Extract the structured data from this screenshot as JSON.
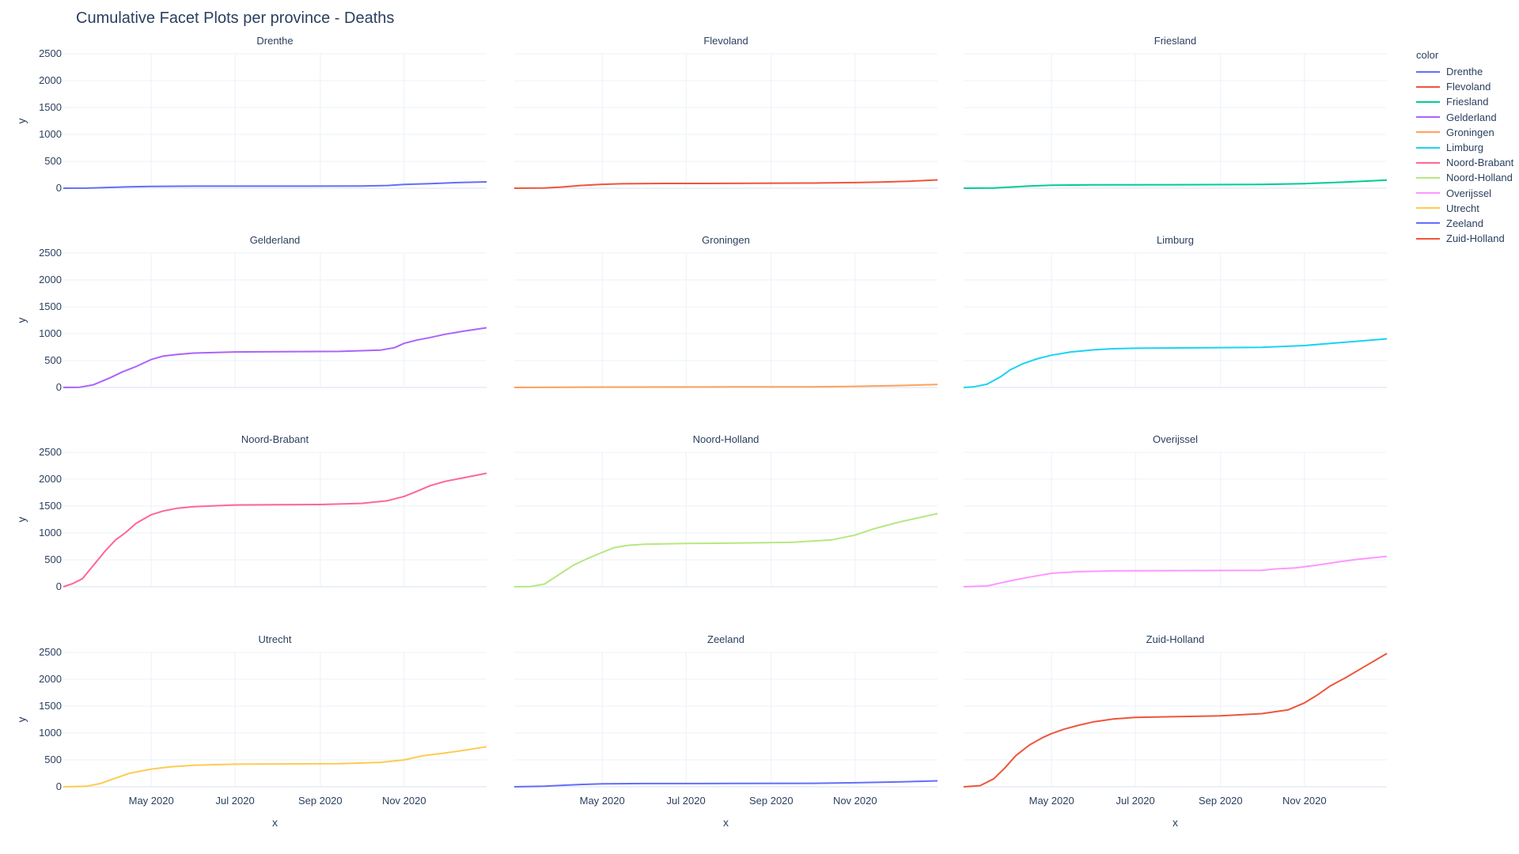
{
  "chart_data": {
    "type": "line",
    "title": "Cumulative Facet Plots per province - Deaths",
    "xlabel": "x",
    "ylabel": "y",
    "ylim": [
      0,
      2500
    ],
    "yticks": [
      0,
      500,
      1000,
      1500,
      2000,
      2500
    ],
    "xlim": [
      "2020-02-27",
      "2020-12-31"
    ],
    "xticks": [
      {
        "date": "2020-05-01",
        "label": "May 2020"
      },
      {
        "date": "2020-07-01",
        "label": "Jul 2020"
      },
      {
        "date": "2020-09-01",
        "label": "Sep 2020"
      },
      {
        "date": "2020-11-01",
        "label": "Nov 2020"
      }
    ],
    "legend_title": "color",
    "legend_position": "top-right",
    "grid": true,
    "series": [
      {
        "name": "Drenthe",
        "color": "#636efa",
        "points": [
          [
            "2020-02-27",
            0
          ],
          [
            "2020-03-15",
            2
          ],
          [
            "2020-04-01",
            15
          ],
          [
            "2020-04-15",
            25
          ],
          [
            "2020-05-01",
            32
          ],
          [
            "2020-06-01",
            38
          ],
          [
            "2020-08-01",
            38
          ],
          [
            "2020-10-01",
            40
          ],
          [
            "2020-10-20",
            50
          ],
          [
            "2020-11-01",
            70
          ],
          [
            "2020-11-20",
            85
          ],
          [
            "2020-12-10",
            105
          ],
          [
            "2020-12-31",
            118
          ]
        ]
      },
      {
        "name": "Flevoland",
        "color": "#EF553B",
        "points": [
          [
            "2020-02-27",
            0
          ],
          [
            "2020-03-20",
            5
          ],
          [
            "2020-04-01",
            20
          ],
          [
            "2020-04-15",
            50
          ],
          [
            "2020-05-01",
            72
          ],
          [
            "2020-05-15",
            82
          ],
          [
            "2020-06-15",
            88
          ],
          [
            "2020-08-01",
            90
          ],
          [
            "2020-10-01",
            95
          ],
          [
            "2020-11-01",
            105
          ],
          [
            "2020-11-20",
            115
          ],
          [
            "2020-12-10",
            130
          ],
          [
            "2020-12-31",
            155
          ]
        ]
      },
      {
        "name": "Friesland",
        "color": "#00cc96",
        "points": [
          [
            "2020-02-27",
            0
          ],
          [
            "2020-03-20",
            5
          ],
          [
            "2020-04-01",
            20
          ],
          [
            "2020-04-15",
            40
          ],
          [
            "2020-05-01",
            55
          ],
          [
            "2020-06-01",
            62
          ],
          [
            "2020-08-01",
            65
          ],
          [
            "2020-10-01",
            70
          ],
          [
            "2020-11-01",
            85
          ],
          [
            "2020-12-01",
            115
          ],
          [
            "2020-12-31",
            150
          ]
        ]
      },
      {
        "name": "Gelderland",
        "color": "#ab63fa",
        "points": [
          [
            "2020-02-27",
            0
          ],
          [
            "2020-03-10",
            5
          ],
          [
            "2020-03-20",
            50
          ],
          [
            "2020-04-01",
            180
          ],
          [
            "2020-04-10",
            290
          ],
          [
            "2020-04-20",
            390
          ],
          [
            "2020-05-01",
            520
          ],
          [
            "2020-05-10",
            585
          ],
          [
            "2020-05-20",
            615
          ],
          [
            "2020-06-01",
            640
          ],
          [
            "2020-07-01",
            660
          ],
          [
            "2020-08-01",
            665
          ],
          [
            "2020-09-15",
            670
          ],
          [
            "2020-10-15",
            695
          ],
          [
            "2020-10-25",
            740
          ],
          [
            "2020-11-01",
            820
          ],
          [
            "2020-11-10",
            880
          ],
          [
            "2020-11-20",
            930
          ],
          [
            "2020-12-01",
            990
          ],
          [
            "2020-12-15",
            1050
          ],
          [
            "2020-12-31",
            1110
          ]
        ]
      },
      {
        "name": "Groningen",
        "color": "#FFA15A",
        "points": [
          [
            "2020-02-27",
            0
          ],
          [
            "2020-04-01",
            3
          ],
          [
            "2020-05-01",
            8
          ],
          [
            "2020-08-01",
            10
          ],
          [
            "2020-10-01",
            12
          ],
          [
            "2020-11-01",
            20
          ],
          [
            "2020-12-01",
            35
          ],
          [
            "2020-12-31",
            55
          ]
        ]
      },
      {
        "name": "Limburg",
        "color": "#19d3f3",
        "points": [
          [
            "2020-02-27",
            0
          ],
          [
            "2020-03-05",
            10
          ],
          [
            "2020-03-15",
            60
          ],
          [
            "2020-03-25",
            200
          ],
          [
            "2020-04-01",
            330
          ],
          [
            "2020-04-10",
            440
          ],
          [
            "2020-04-20",
            530
          ],
          [
            "2020-05-01",
            600
          ],
          [
            "2020-05-15",
            660
          ],
          [
            "2020-06-01",
            700
          ],
          [
            "2020-06-15",
            720
          ],
          [
            "2020-07-01",
            730
          ],
          [
            "2020-08-01",
            735
          ],
          [
            "2020-10-01",
            745
          ],
          [
            "2020-11-01",
            780
          ],
          [
            "2020-11-20",
            820
          ],
          [
            "2020-12-10",
            860
          ],
          [
            "2020-12-31",
            905
          ]
        ]
      },
      {
        "name": "Noord-Brabant",
        "color": "#FF6692",
        "points": [
          [
            "2020-02-27",
            0
          ],
          [
            "2020-03-05",
            60
          ],
          [
            "2020-03-12",
            150
          ],
          [
            "2020-03-20",
            400
          ],
          [
            "2020-03-28",
            650
          ],
          [
            "2020-04-05",
            870
          ],
          [
            "2020-04-12",
            1000
          ],
          [
            "2020-04-20",
            1180
          ],
          [
            "2020-05-01",
            1340
          ],
          [
            "2020-05-10",
            1410
          ],
          [
            "2020-05-20",
            1460
          ],
          [
            "2020-06-01",
            1490
          ],
          [
            "2020-07-01",
            1520
          ],
          [
            "2020-08-01",
            1525
          ],
          [
            "2020-09-01",
            1530
          ],
          [
            "2020-10-01",
            1550
          ],
          [
            "2020-10-20",
            1600
          ],
          [
            "2020-11-01",
            1680
          ],
          [
            "2020-11-10",
            1770
          ],
          [
            "2020-11-20",
            1880
          ],
          [
            "2020-12-01",
            1960
          ],
          [
            "2020-12-15",
            2030
          ],
          [
            "2020-12-31",
            2110
          ]
        ]
      },
      {
        "name": "Noord-Holland",
        "color": "#B6E880",
        "points": [
          [
            "2020-02-27",
            0
          ],
          [
            "2020-03-10",
            5
          ],
          [
            "2020-03-20",
            50
          ],
          [
            "2020-04-01",
            250
          ],
          [
            "2020-04-10",
            400
          ],
          [
            "2020-04-20",
            520
          ],
          [
            "2020-05-01",
            640
          ],
          [
            "2020-05-10",
            730
          ],
          [
            "2020-05-20",
            770
          ],
          [
            "2020-06-01",
            790
          ],
          [
            "2020-07-01",
            805
          ],
          [
            "2020-08-01",
            810
          ],
          [
            "2020-09-15",
            825
          ],
          [
            "2020-10-15",
            870
          ],
          [
            "2020-11-01",
            960
          ],
          [
            "2020-11-15",
            1080
          ],
          [
            "2020-12-01",
            1190
          ],
          [
            "2020-12-15",
            1270
          ],
          [
            "2020-12-31",
            1360
          ]
        ]
      },
      {
        "name": "Overijssel",
        "color": "#FF97FF",
        "points": [
          [
            "2020-02-27",
            0
          ],
          [
            "2020-03-15",
            15
          ],
          [
            "2020-04-01",
            110
          ],
          [
            "2020-04-15",
            180
          ],
          [
            "2020-05-01",
            250
          ],
          [
            "2020-05-20",
            280
          ],
          [
            "2020-06-15",
            295
          ],
          [
            "2020-08-01",
            300
          ],
          [
            "2020-10-01",
            305
          ],
          [
            "2020-10-10",
            330
          ],
          [
            "2020-10-25",
            350
          ],
          [
            "2020-11-10",
            400
          ],
          [
            "2020-11-25",
            460
          ],
          [
            "2020-12-10",
            510
          ],
          [
            "2020-12-31",
            565
          ]
        ]
      },
      {
        "name": "Utrecht",
        "color": "#FECB52",
        "points": [
          [
            "2020-02-27",
            0
          ],
          [
            "2020-03-15",
            10
          ],
          [
            "2020-03-25",
            60
          ],
          [
            "2020-04-05",
            160
          ],
          [
            "2020-04-15",
            250
          ],
          [
            "2020-05-01",
            330
          ],
          [
            "2020-05-15",
            370
          ],
          [
            "2020-06-01",
            400
          ],
          [
            "2020-07-01",
            420
          ],
          [
            "2020-08-01",
            425
          ],
          [
            "2020-09-15",
            430
          ],
          [
            "2020-10-15",
            455
          ],
          [
            "2020-11-01",
            500
          ],
          [
            "2020-11-15",
            580
          ],
          [
            "2020-12-01",
            630
          ],
          [
            "2020-12-15",
            680
          ],
          [
            "2020-12-31",
            745
          ]
        ]
      },
      {
        "name": "Zeeland",
        "color": "#636efa",
        "points": [
          [
            "2020-02-27",
            0
          ],
          [
            "2020-03-20",
            10
          ],
          [
            "2020-04-01",
            25
          ],
          [
            "2020-04-15",
            42
          ],
          [
            "2020-05-01",
            55
          ],
          [
            "2020-06-01",
            60
          ],
          [
            "2020-08-01",
            62
          ],
          [
            "2020-10-01",
            65
          ],
          [
            "2020-11-01",
            75
          ],
          [
            "2020-12-01",
            90
          ],
          [
            "2020-12-31",
            110
          ]
        ]
      },
      {
        "name": "Zuid-Holland",
        "color": "#EF553B",
        "points": [
          [
            "2020-02-27",
            0
          ],
          [
            "2020-03-10",
            20
          ],
          [
            "2020-03-20",
            150
          ],
          [
            "2020-03-28",
            350
          ],
          [
            "2020-04-05",
            580
          ],
          [
            "2020-04-15",
            780
          ],
          [
            "2020-04-25",
            920
          ],
          [
            "2020-05-01",
            990
          ],
          [
            "2020-05-10",
            1070
          ],
          [
            "2020-05-20",
            1140
          ],
          [
            "2020-06-01",
            1210
          ],
          [
            "2020-06-15",
            1260
          ],
          [
            "2020-07-01",
            1290
          ],
          [
            "2020-08-01",
            1305
          ],
          [
            "2020-09-01",
            1320
          ],
          [
            "2020-10-01",
            1360
          ],
          [
            "2020-10-20",
            1430
          ],
          [
            "2020-11-01",
            1560
          ],
          [
            "2020-11-10",
            1700
          ],
          [
            "2020-11-20",
            1880
          ],
          [
            "2020-12-01",
            2030
          ],
          [
            "2020-12-15",
            2240
          ],
          [
            "2020-12-25",
            2390
          ],
          [
            "2020-12-31",
            2480
          ]
        ]
      }
    ]
  }
}
